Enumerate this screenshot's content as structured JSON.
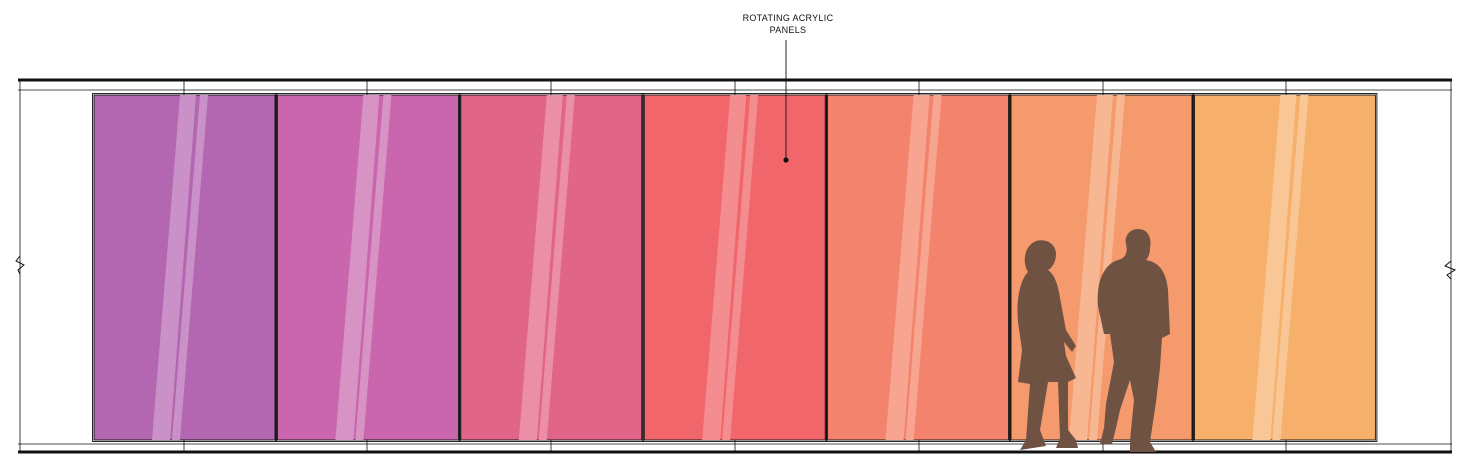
{
  "annotation": {
    "line1": "ROTATING ACRYLIC",
    "line2": "PANELS"
  },
  "panels": [
    {
      "color": "#b267b0",
      "highlight": "#c991c8"
    },
    {
      "color": "#c966ae",
      "highlight": "#d893c5"
    },
    {
      "color": "#e06588",
      "highlight": "#ea8fa7"
    },
    {
      "color": "#f0666b",
      "highlight": "#f48d90"
    },
    {
      "color": "#f4836d",
      "highlight": "#f7a591"
    },
    {
      "color": "#f59a6c",
      "highlight": "#f8b793"
    },
    {
      "color": "#f6b06b",
      "highlight": "#f9c795"
    }
  ],
  "silhouette_color": "#705243",
  "line_color": "#111111",
  "icons": [
    "break-line-symbol",
    "person-silhouette-woman",
    "person-silhouette-man",
    "leader-dot"
  ]
}
